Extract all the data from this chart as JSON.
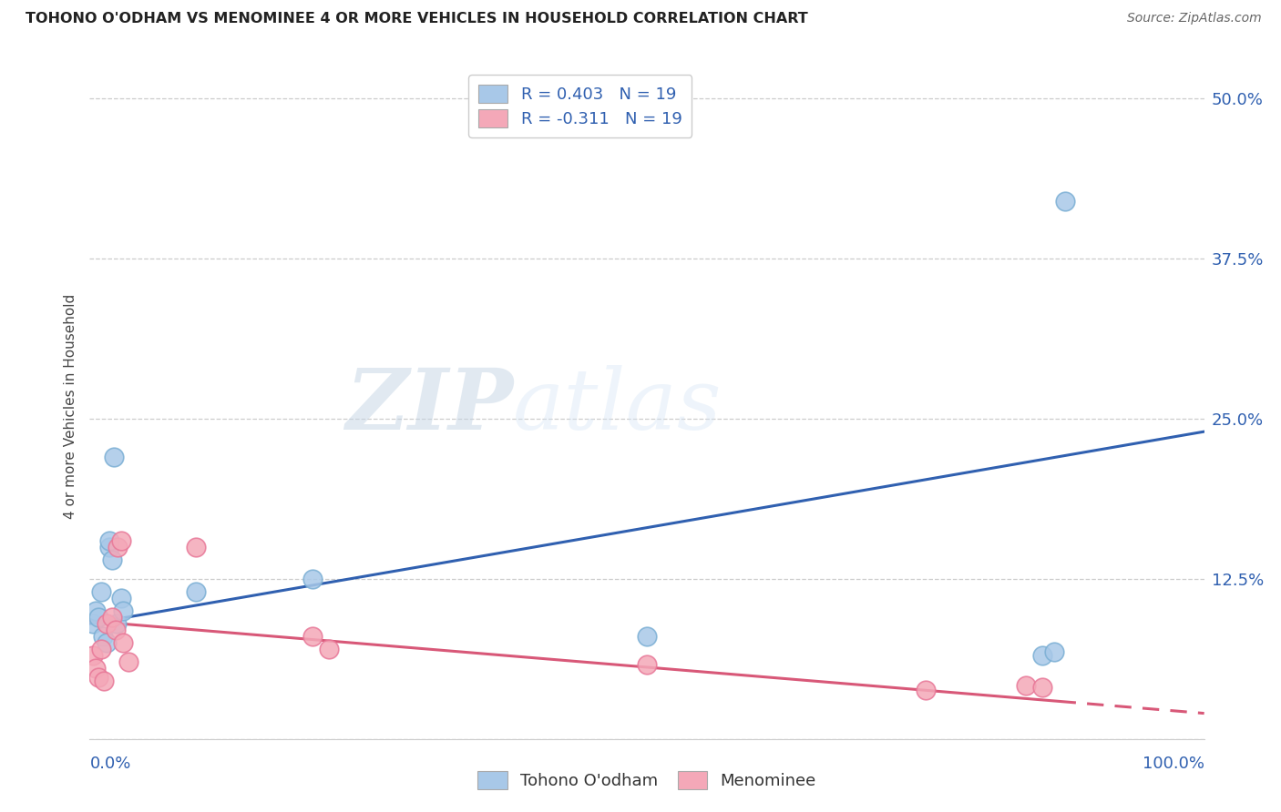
{
  "title": "TOHONO O'ODHAM VS MENOMINEE 4 OR MORE VEHICLES IN HOUSEHOLD CORRELATION CHART",
  "source": "Source: ZipAtlas.com",
  "ylabel": "4 or more Vehicles in Household",
  "legend1_label": "R = 0.403   N = 19",
  "legend2_label": "R = -0.311   N = 19",
  "legend_bottom_label1": "Tohono O'odham",
  "legend_bottom_label2": "Menominee",
  "blue_color": "#a8c8e8",
  "blue_edge_color": "#7bafd4",
  "pink_color": "#f4a8b8",
  "pink_edge_color": "#e87898",
  "blue_line_color": "#3060b0",
  "pink_line_color": "#d85878",
  "text_blue": "#3060b0",
  "watermark_color": "#d0dce8",
  "xmin": 0.0,
  "xmax": 1.0,
  "ymin": 0.0,
  "ymax": 0.52,
  "yticks": [
    0.0,
    0.125,
    0.25,
    0.375,
    0.5
  ],
  "ytick_labels": [
    "",
    "12.5%",
    "25.0%",
    "37.5%",
    "50.0%"
  ],
  "blue_x": [
    0.003,
    0.005,
    0.008,
    0.01,
    0.012,
    0.015,
    0.018,
    0.02,
    0.024,
    0.028,
    0.095,
    0.2,
    0.5,
    0.855,
    0.865,
    0.875,
    0.022,
    0.018,
    0.03
  ],
  "blue_y": [
    0.09,
    0.1,
    0.095,
    0.115,
    0.08,
    0.075,
    0.15,
    0.14,
    0.09,
    0.11,
    0.115,
    0.125,
    0.08,
    0.065,
    0.068,
    0.42,
    0.22,
    0.155,
    0.1
  ],
  "pink_x": [
    0.003,
    0.005,
    0.008,
    0.01,
    0.013,
    0.015,
    0.02,
    0.023,
    0.025,
    0.028,
    0.03,
    0.035,
    0.095,
    0.2,
    0.215,
    0.5,
    0.75,
    0.84,
    0.855
  ],
  "pink_y": [
    0.065,
    0.055,
    0.048,
    0.07,
    0.045,
    0.09,
    0.095,
    0.085,
    0.15,
    0.155,
    0.075,
    0.06,
    0.15,
    0.08,
    0.07,
    0.058,
    0.038,
    0.042,
    0.04
  ],
  "blue_line_x0": 0.0,
  "blue_line_y0": 0.09,
  "blue_line_x1": 1.0,
  "blue_line_y1": 0.24,
  "pink_line_x0": 0.0,
  "pink_line_y0": 0.092,
  "pink_line_x1": 1.0,
  "pink_line_y1": 0.02
}
